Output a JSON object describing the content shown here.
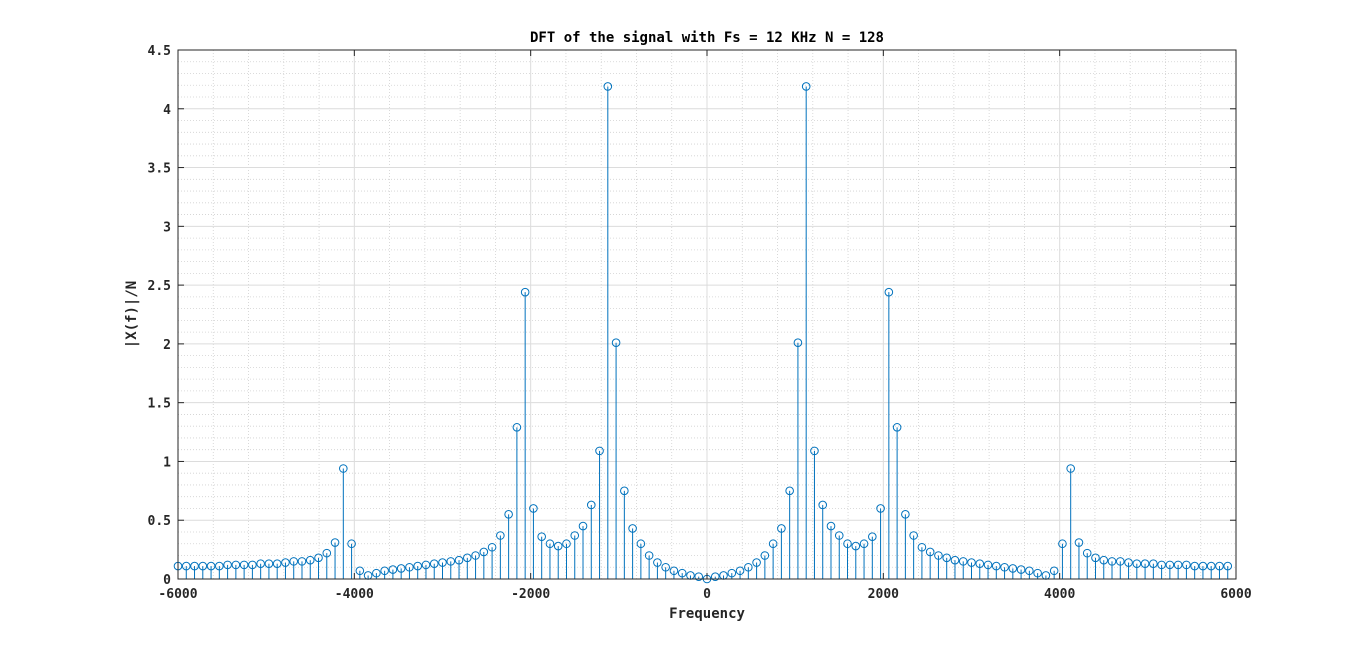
{
  "chart_data": {
    "type": "stem",
    "title": "DFT of the signal with Fs = 12 KHz N = 128",
    "xlabel": "Frequency",
    "ylabel": "|X(f)|/N",
    "xlim": [
      -6000,
      6000
    ],
    "ylim": [
      0,
      4.5
    ],
    "xticks": [
      -6000,
      -4000,
      -2000,
      0,
      2000,
      4000,
      6000
    ],
    "xtick_labels": [
      "-6000",
      "-4000",
      "-2000",
      "0",
      "2000",
      "4000",
      "6000"
    ],
    "yticks": [
      0,
      0.5,
      1,
      1.5,
      2,
      2.5,
      3,
      3.5,
      4,
      4.5
    ],
    "ytick_labels": [
      "0",
      "0.5",
      "1",
      "1.5",
      "2",
      "2.5",
      "3",
      "3.5",
      "4",
      "4.5"
    ],
    "grid": true,
    "minor_grid": true,
    "color": "#0072BD",
    "series": [
      {
        "x": [
          -6000,
          -5906.25,
          -5812.5,
          -5718.75,
          -5625,
          -5531.25,
          -5437.5,
          -5343.75,
          -5250,
          -5156.25,
          -5062.5,
          -4968.75,
          -4875,
          -4781.25,
          -4687.5,
          -4593.75,
          -4500,
          -4406.25,
          -4312.5,
          -4218.75,
          -4125,
          -4031.25,
          -3937.5,
          -3843.75,
          -3750,
          -3656.25,
          -3562.5,
          -3468.75,
          -3375,
          -3281.25,
          -3187.5,
          -3093.75,
          -3000,
          -2906.25,
          -2812.5,
          -2718.75,
          -2625,
          -2531.25,
          -2437.5,
          -2343.75,
          -2250,
          -2156.25,
          -2062.5,
          -1968.75,
          -1875,
          -1781.25,
          -1687.5,
          -1593.75,
          -1500,
          -1406.25,
          -1312.5,
          -1218.75,
          -1125,
          -1031.25,
          -937.5,
          -843.75,
          -750,
          -656.25,
          -562.5,
          -468.75,
          -375,
          -281.25,
          -187.5,
          -93.75,
          0,
          93.75,
          187.5,
          281.25,
          375,
          468.75,
          562.5,
          656.25,
          750,
          843.75,
          937.5,
          1031.25,
          1125,
          1218.75,
          1312.5,
          1406.25,
          1500,
          1593.75,
          1687.5,
          1781.25,
          1875,
          1968.75,
          2062.5,
          2156.25,
          2250,
          2343.75,
          2437.5,
          2531.25,
          2625,
          2718.75,
          2812.5,
          2906.25,
          3000,
          3093.75,
          3187.5,
          3281.25,
          3375,
          3468.75,
          3562.5,
          3656.25,
          3750,
          3843.75,
          3937.5,
          4031.25,
          4125,
          4218.75,
          4312.5,
          4406.25,
          4500,
          4593.75,
          4687.5,
          4781.25,
          4875,
          4968.75,
          5062.5,
          5156.25,
          5250,
          5343.75,
          5437.5,
          5531.25,
          5625,
          5718.75,
          5812.5,
          5906.25
        ],
        "y": [
          0.11,
          0.11,
          0.11,
          0.11,
          0.11,
          0.11,
          0.12,
          0.12,
          0.12,
          0.12,
          0.13,
          0.13,
          0.13,
          0.14,
          0.15,
          0.15,
          0.16,
          0.18,
          0.22,
          0.31,
          0.94,
          0.3,
          0.07,
          0.03,
          0.05,
          0.07,
          0.08,
          0.09,
          0.1,
          0.11,
          0.12,
          0.13,
          0.14,
          0.15,
          0.16,
          0.18,
          0.2,
          0.23,
          0.27,
          0.37,
          0.55,
          1.29,
          2.44,
          0.6,
          0.36,
          0.3,
          0.28,
          0.3,
          0.37,
          0.45,
          0.63,
          1.09,
          4.19,
          2.01,
          0.75,
          0.43,
          0.3,
          0.2,
          0.14,
          0.1,
          0.07,
          0.05,
          0.03,
          0.02,
          0.0,
          0.02,
          0.03,
          0.05,
          0.07,
          0.1,
          0.14,
          0.2,
          0.3,
          0.43,
          0.75,
          2.01,
          4.19,
          1.09,
          0.63,
          0.45,
          0.37,
          0.3,
          0.28,
          0.3,
          0.36,
          0.6,
          2.44,
          1.29,
          0.55,
          0.37,
          0.27,
          0.23,
          0.2,
          0.18,
          0.16,
          0.15,
          0.14,
          0.13,
          0.12,
          0.11,
          0.1,
          0.09,
          0.08,
          0.07,
          0.05,
          0.03,
          0.07,
          0.3,
          0.94,
          0.31,
          0.22,
          0.18,
          0.16,
          0.15,
          0.15,
          0.14,
          0.13,
          0.13,
          0.13,
          0.12,
          0.12,
          0.12,
          0.12,
          0.11,
          0.11,
          0.11,
          0.11,
          0.11
        ]
      }
    ]
  }
}
